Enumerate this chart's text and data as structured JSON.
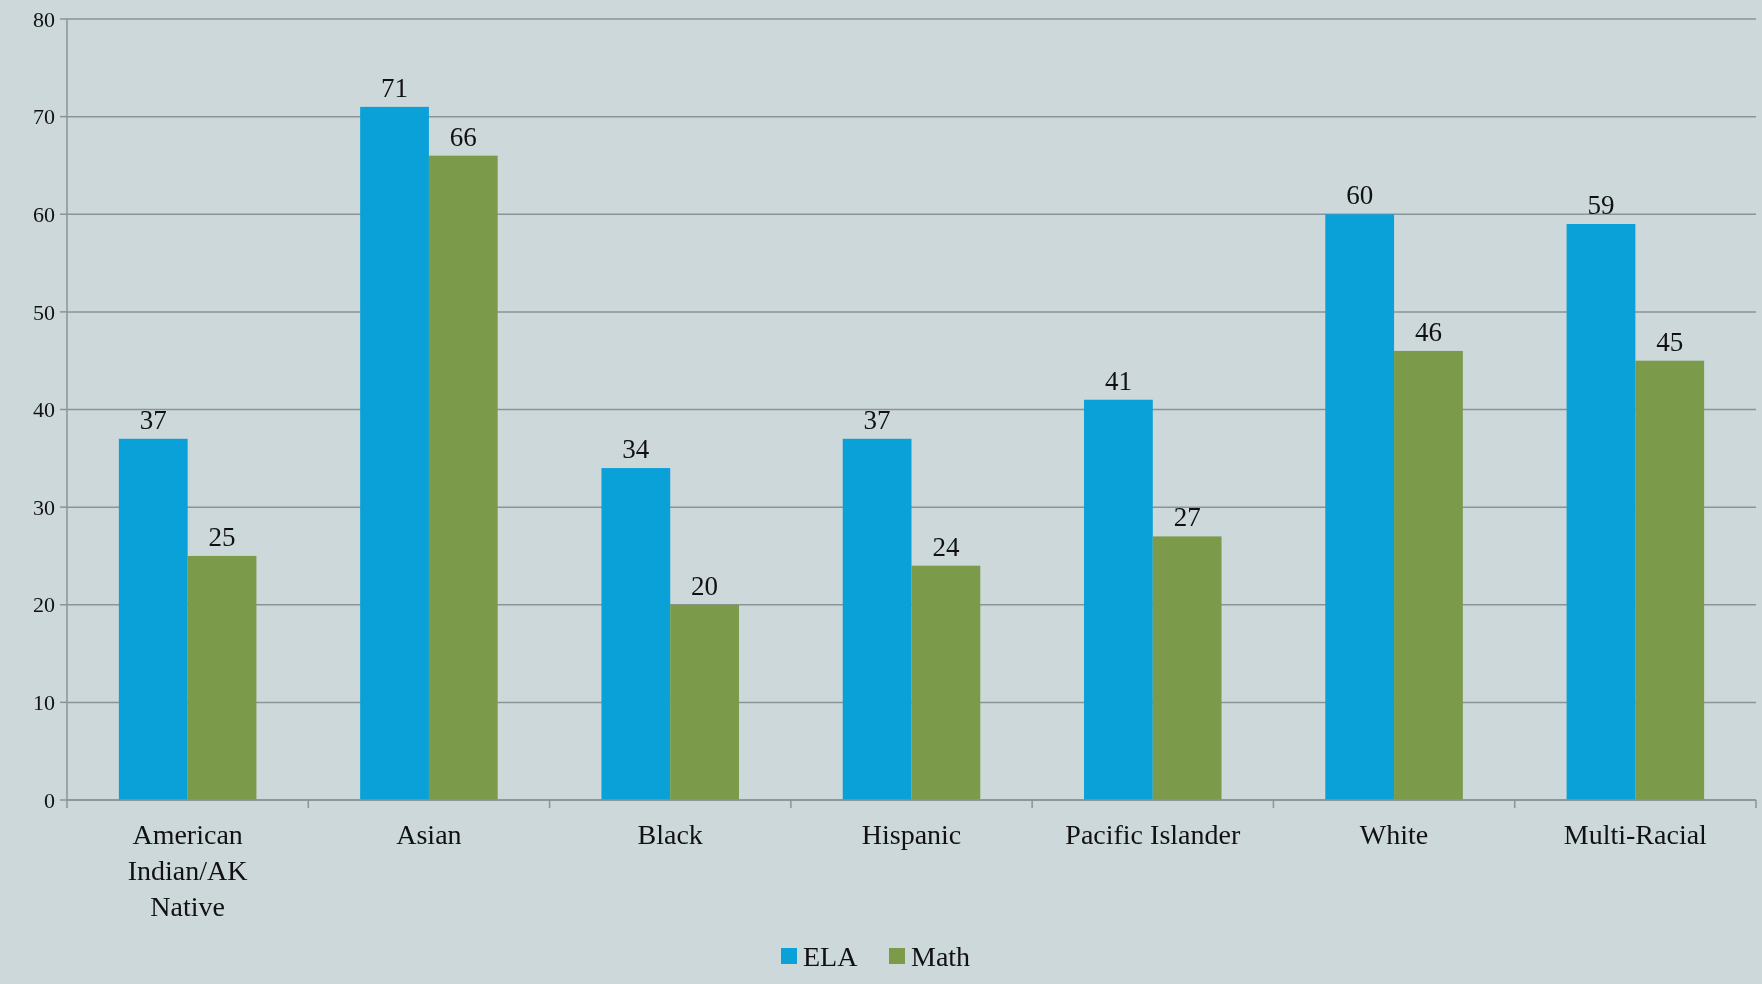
{
  "chart_data": {
    "type": "bar",
    "categories": [
      "American Indian/AK Native",
      "Asian",
      "Black",
      "Hispanic",
      "Pacific Islander",
      "White",
      "Multi-Racial"
    ],
    "series": [
      {
        "name": "ELA",
        "color": "#0aa0d8",
        "values": [
          37,
          71,
          34,
          37,
          41,
          60,
          59
        ]
      },
      {
        "name": "Math",
        "color": "#7b9a4a",
        "values": [
          25,
          66,
          20,
          24,
          27,
          46,
          45
        ]
      }
    ],
    "ylim": [
      0,
      80
    ],
    "yticks": [
      0,
      10,
      20,
      30,
      40,
      50,
      60,
      70,
      80
    ],
    "grid": "y",
    "legend": "bottom",
    "data_labels": true
  }
}
